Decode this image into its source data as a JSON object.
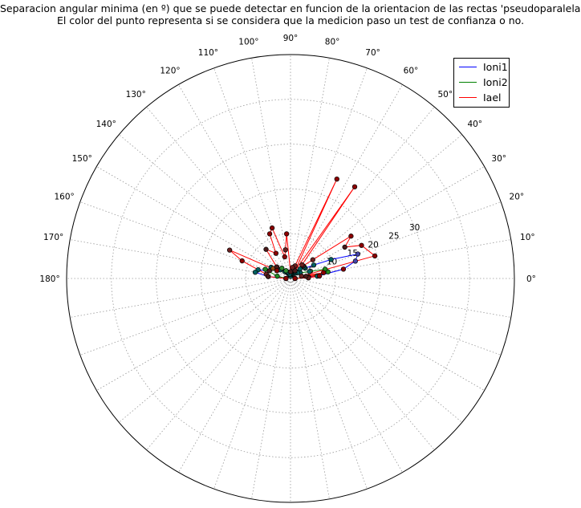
{
  "chart_data": {
    "type": "scatter",
    "projection": "polar",
    "title_line1": "Separacion angular minima (en º) que se puede detectar en funcion de la orientacion de las rectas 'pseudoparalelas'.",
    "title_line2": "El color del punto representa si se considera que la medicion paso un test de confianza o no.",
    "theta_range_deg": [
      0,
      180
    ],
    "r_range": [
      0,
      50
    ],
    "grid": true,
    "legend_position": "top-right",
    "angle_ticks": [
      "0°",
      "10°",
      "20°",
      "30°",
      "40°",
      "50°",
      "60°",
      "70°",
      "80°",
      "90°",
      "100°",
      "110°",
      "120°",
      "130°",
      "140°",
      "150°",
      "160°",
      "170°",
      "180°"
    ],
    "radial_ticks": [
      "5",
      "10",
      "15",
      "20",
      "25",
      "30"
    ],
    "radial_tick_values": [
      5,
      10,
      15,
      20,
      25,
      30
    ],
    "radial_tick_angle_deg": 22.5,
    "series": [
      {
        "name": "Ioni1",
        "color": "#0000ff",
        "points": [
          [
            0,
            1.0
          ],
          [
            5,
            6.0
          ],
          [
            10,
            12.0
          ],
          [
            15,
            15.0
          ],
          [
            20,
            16.0
          ],
          [
            25,
            10.0
          ],
          [
            30,
            6.0
          ],
          [
            35,
            4.0
          ],
          [
            40,
            4.0
          ],
          [
            45,
            3.0
          ],
          [
            50,
            2.0
          ],
          [
            55,
            1.5
          ],
          [
            60,
            1.5
          ],
          [
            70,
            1.0
          ],
          [
            80,
            1.0
          ],
          [
            90,
            0.5
          ],
          [
            100,
            1.0
          ],
          [
            110,
            1.0
          ],
          [
            120,
            1.5
          ],
          [
            130,
            2.0
          ],
          [
            140,
            3.0
          ],
          [
            150,
            5.0
          ],
          [
            160,
            5.0
          ],
          [
            165,
            7.5
          ],
          [
            170,
            8.0
          ],
          [
            175,
            5.0
          ],
          [
            180,
            1.0
          ]
        ],
        "point_colors": [
          "#006060",
          "#006060",
          "#8b0000",
          "#4444aa",
          "#4444aa",
          "#006060",
          "#006060",
          "#006060",
          "#006060",
          "#006060",
          "#006060",
          "#006060",
          "#006060",
          "#006060",
          "#006060",
          "#006060",
          "#006060",
          "#006060",
          "#006060",
          "#006060",
          "#006060",
          "#006060",
          "#4a1a1a",
          "#006060",
          "#006060",
          "#006060",
          "#006060"
        ]
      },
      {
        "name": "Ioni2",
        "color": "#008000",
        "points": [
          [
            0,
            1.0
          ],
          [
            5,
            4.0
          ],
          [
            10,
            8.5
          ],
          [
            15,
            8.0
          ],
          [
            20,
            4.5
          ],
          [
            30,
            2.5
          ],
          [
            40,
            2.0
          ],
          [
            50,
            1.5
          ],
          [
            60,
            1.5
          ],
          [
            70,
            1.0
          ],
          [
            80,
            1.0
          ],
          [
            90,
            1.0
          ],
          [
            100,
            1.0
          ],
          [
            110,
            1.5
          ],
          [
            120,
            2.0
          ],
          [
            130,
            3.0
          ],
          [
            140,
            4.0
          ],
          [
            150,
            4.5
          ],
          [
            160,
            6.0
          ],
          [
            170,
            3.0
          ],
          [
            180,
            1.0
          ]
        ],
        "point_colors": [
          "#006060",
          "#8b4513",
          "#228b22",
          "#228b22",
          "#006060",
          "#006060",
          "#006060",
          "#006060",
          "#006060",
          "#006060",
          "#006060",
          "#006060",
          "#006060",
          "#006060",
          "#2e8b2e",
          "#2e8b2e",
          "#228b22",
          "#8b4513",
          "#228b22",
          "#228b22",
          "#006060"
        ]
      },
      {
        "name": "Iael",
        "color": "#ff0000",
        "points": [
          [
            0,
            1.0
          ],
          [
            2,
            4.0
          ],
          [
            5,
            6.5
          ],
          [
            8,
            3.5
          ],
          [
            10,
            7.5
          ],
          [
            12,
            2.5
          ],
          [
            15,
            19.5
          ],
          [
            25,
            17.5
          ],
          [
            30,
            14.0
          ],
          [
            35,
            16.5
          ],
          [
            40,
            6.5
          ],
          [
            45,
            4.0
          ],
          [
            50,
            4.0
          ],
          [
            55,
            25.0
          ],
          [
            60,
            2.0
          ],
          [
            65,
            24.5
          ],
          [
            70,
            3.0
          ],
          [
            80,
            2.5
          ],
          [
            90,
            1.5
          ],
          [
            95,
            10.0
          ],
          [
            100,
            6.5
          ],
          [
            105,
            5.0
          ],
          [
            110,
            12.0
          ],
          [
            115,
            11.0
          ],
          [
            120,
            6.5
          ],
          [
            130,
            8.5
          ],
          [
            140,
            4.0
          ],
          [
            150,
            3.5
          ],
          [
            155,
            15.0
          ],
          [
            160,
            11.5
          ],
          [
            170,
            5.5
          ],
          [
            175,
            5.0
          ],
          [
            180,
            1.0
          ]
        ],
        "point_colors": [
          "#8b0000",
          "#6b2020",
          "#8b0000",
          "#4a1a1a",
          "#8b0000",
          "#6b2020",
          "#8b0000",
          "#8b0000",
          "#4a1a1a",
          "#8b0000",
          "#6b2020",
          "#4a1a1a",
          "#6b2020",
          "#8b0000",
          "#4a1a1a",
          "#8b0000",
          "#6b2020",
          "#6b2020",
          "#4a1a1a",
          "#8b0000",
          "#6b2020",
          "#8b0000",
          "#8b0000",
          "#8b0000",
          "#8b0000",
          "#4a1a1a",
          "#4a1a1a",
          "#8b0000",
          "#6b2020",
          "#8b0000",
          "#6b2020",
          "#4a1a1a",
          "#8b0000"
        ]
      }
    ]
  }
}
